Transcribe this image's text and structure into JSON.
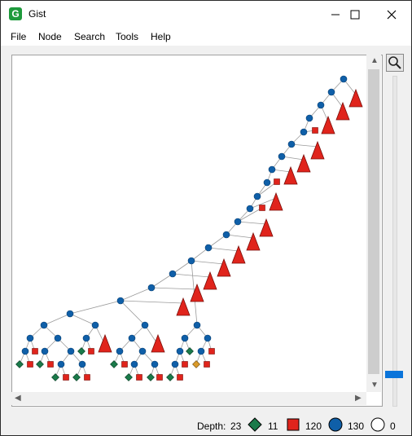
{
  "window": {
    "title": "Gist",
    "app_icon_letter": "G"
  },
  "menu": [
    "File",
    "Node",
    "Search",
    "Tools",
    "Help"
  ],
  "status": {
    "depth_label": "Depth:",
    "depth_value": "23",
    "solved_count": "11",
    "failed_count": "120",
    "choice_count": "130",
    "open_count": "0"
  },
  "colors": {
    "solved": "#1a7a4a",
    "failed": "#e0241c",
    "choice": "#0f5fa8",
    "partial": "#d99a2a",
    "accent": "#0a74da"
  },
  "icons": {
    "zoom": "magnifier-icon",
    "minimize": "minimize-icon",
    "maximize": "maximize-icon",
    "close": "close-icon"
  }
}
